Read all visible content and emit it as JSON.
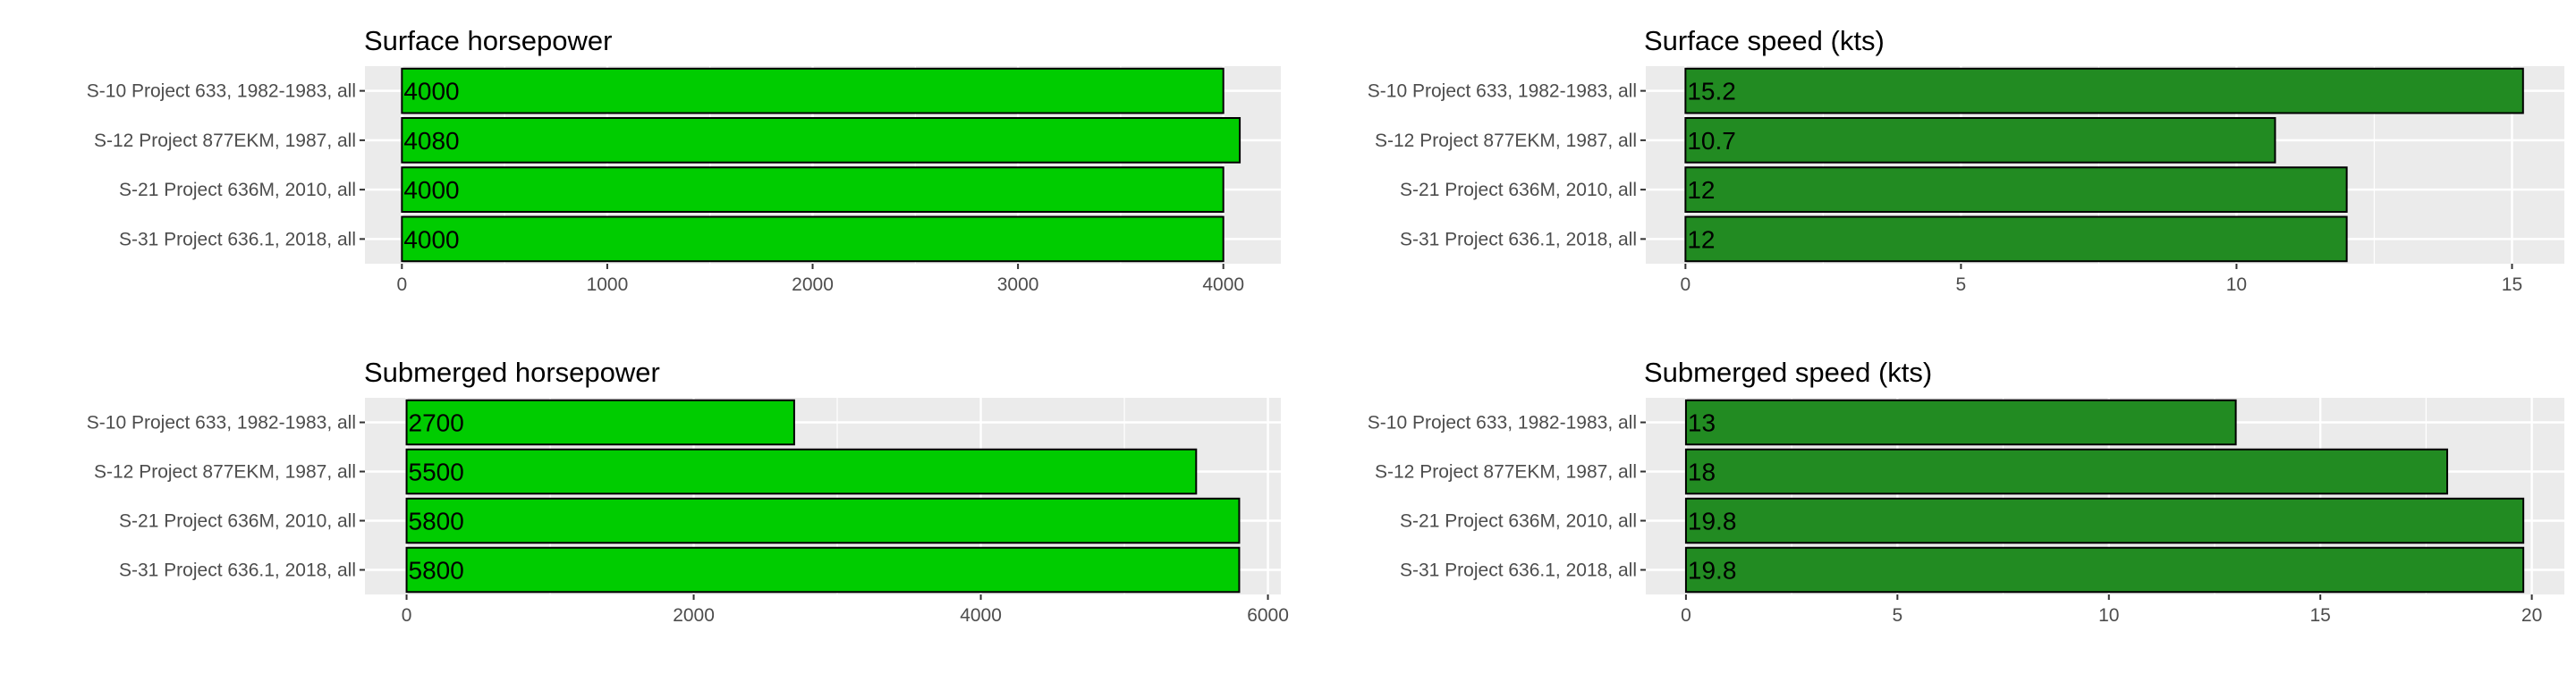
{
  "chart_data": [
    {
      "type": "bar",
      "orientation": "horizontal",
      "title": "Surface horsepower",
      "xlabel": "",
      "ylabel": "",
      "categories": [
        "S-10 Project 633, 1982-1983, all",
        "S-12 Project 877EKM, 1987, all",
        "S-21 Project 636M, 2010, all",
        "S-31 Project 636.1, 2018, all"
      ],
      "values": [
        4000,
        4080,
        4000,
        4000
      ],
      "data_labels": [
        "4000",
        "4080",
        "4000",
        "4000"
      ],
      "xlim": [
        -180,
        4280
      ],
      "ticks": [
        0,
        1000,
        2000,
        3000,
        4000
      ],
      "tick_labels": [
        "0",
        "1000",
        "2000",
        "3000",
        "4000"
      ],
      "bar_color": "#00cc00",
      "grid": true,
      "legend": "none"
    },
    {
      "type": "bar",
      "orientation": "horizontal",
      "title": "Surface speed (kts)",
      "xlabel": "",
      "ylabel": "",
      "categories": [
        "S-10 Project 633, 1982-1983, all",
        "S-12 Project 877EKM, 1987, all",
        "S-21 Project 636M, 2010, all",
        "S-31 Project 636.1, 2018, all"
      ],
      "values": [
        15.2,
        10.7,
        12,
        12
      ],
      "data_labels": [
        "15.2",
        "10.7",
        "12",
        "12"
      ],
      "xlim": [
        -0.72,
        15.95
      ],
      "ticks": [
        0,
        5,
        10,
        15
      ],
      "tick_labels": [
        "0",
        "5",
        "10",
        "15"
      ],
      "bar_color": "#228b22",
      "grid": true,
      "legend": "none"
    },
    {
      "type": "bar",
      "orientation": "horizontal",
      "title": "Submerged horsepower",
      "xlabel": "",
      "ylabel": "",
      "categories": [
        "S-10 Project 633, 1982-1983, all",
        "S-12 Project 877EKM, 1987, all",
        "S-21 Project 636M, 2010, all",
        "S-31 Project 636.1, 2018, all"
      ],
      "values": [
        2700,
        5500,
        5800,
        5800
      ],
      "data_labels": [
        "2700",
        "5500",
        "5800",
        "5800"
      ],
      "xlim": [
        -290,
        6090
      ],
      "ticks": [
        0,
        2000,
        4000,
        6000
      ],
      "tick_labels": [
        "0",
        "2000",
        "4000",
        "6000"
      ],
      "bar_color": "#00cc00",
      "grid": true,
      "legend": "none"
    },
    {
      "type": "bar",
      "orientation": "horizontal",
      "title": "Submerged speed (kts)",
      "xlabel": "",
      "ylabel": "",
      "categories": [
        "S-10 Project 633, 1982-1983, all",
        "S-12 Project 877EKM, 1987, all",
        "S-21 Project 636M, 2010, all",
        "S-31 Project 636.1, 2018, all"
      ],
      "values": [
        13,
        18,
        19.8,
        19.8
      ],
      "data_labels": [
        "13",
        "18",
        "19.8",
        "19.8"
      ],
      "xlim": [
        -0.95,
        20.77
      ],
      "ticks": [
        0,
        5,
        10,
        15,
        20
      ],
      "tick_labels": [
        "0",
        "5",
        "10",
        "15",
        "20"
      ],
      "bar_color": "#228b22",
      "grid": true,
      "legend": "none"
    }
  ],
  "colors": {
    "panel_background": "#ebebeb",
    "grid_major": "#ffffff",
    "axis_text": "#4d4d4d",
    "title_text": "#000000",
    "bar_outline": "#000000"
  }
}
